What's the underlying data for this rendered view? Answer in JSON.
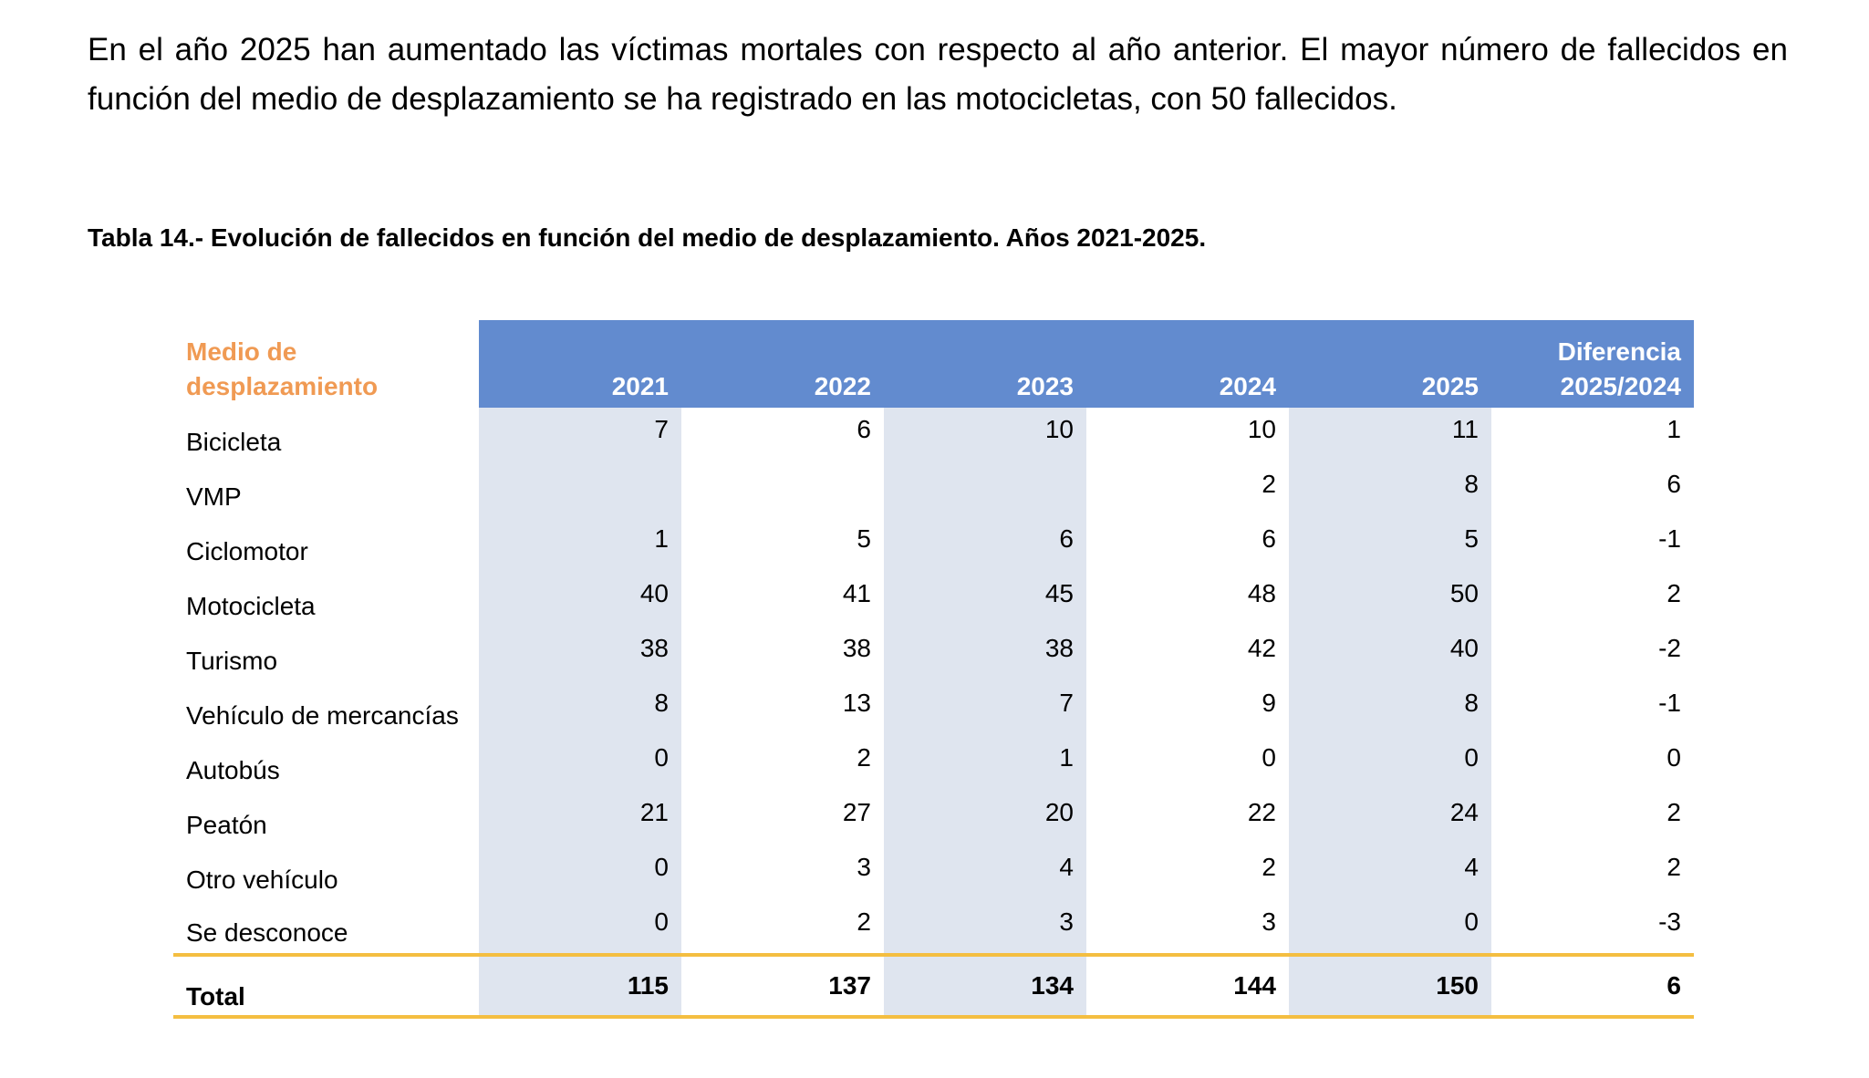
{
  "paragraph": "En el año 2025 han aumentado las víctimas mortales con respecto al año anterior. El mayor número de fallecidos en función del medio de desplazamiento se ha registrado en las motocicletas, con 50 fallecidos.",
  "caption": "Tabla 14.- Evolución de fallecidos en función del medio de desplazamiento. Años 2021-2025.",
  "table": {
    "header": {
      "label_line1": "Medio de",
      "label_line2": "desplazamiento",
      "years": [
        "2021",
        "2022",
        "2023",
        "2024",
        "2025"
      ],
      "diff_line1": "Diferencia",
      "diff_line2": "2025/2024"
    },
    "rows": [
      {
        "label": "Bicicleta",
        "values": [
          "7",
          "6",
          "10",
          "10",
          "11",
          "1"
        ]
      },
      {
        "label": "VMP",
        "values": [
          "",
          "",
          "",
          "2",
          "8",
          "6"
        ]
      },
      {
        "label": "Ciclomotor",
        "values": [
          "1",
          "5",
          "6",
          "6",
          "5",
          "-1"
        ]
      },
      {
        "label": "Motocicleta",
        "values": [
          "40",
          "41",
          "45",
          "48",
          "50",
          "2"
        ]
      },
      {
        "label": "Turismo",
        "values": [
          "38",
          "38",
          "38",
          "42",
          "40",
          "-2"
        ]
      },
      {
        "label": "Vehículo de mercancías",
        "values": [
          "8",
          "13",
          "7",
          "9",
          "8",
          "-1"
        ]
      },
      {
        "label": "Autobús",
        "values": [
          "0",
          "2",
          "1",
          "0",
          "0",
          "0"
        ]
      },
      {
        "label": "Peatón",
        "values": [
          "21",
          "27",
          "20",
          "22",
          "24",
          "2"
        ]
      },
      {
        "label": "Otro vehículo",
        "values": [
          "0",
          "3",
          "4",
          "2",
          "4",
          "2"
        ]
      },
      {
        "label": "Se desconoce",
        "values": [
          "0",
          "2",
          "3",
          "3",
          "0",
          "-3"
        ]
      }
    ],
    "total": {
      "label": "Total",
      "values": [
        "115",
        "137",
        "134",
        "144",
        "150",
        "6"
      ]
    }
  },
  "colors": {
    "header_bg": "#628bcf",
    "shade": "#dfe5ef",
    "label_header": "#f09a53",
    "rule": "#f4be41"
  }
}
